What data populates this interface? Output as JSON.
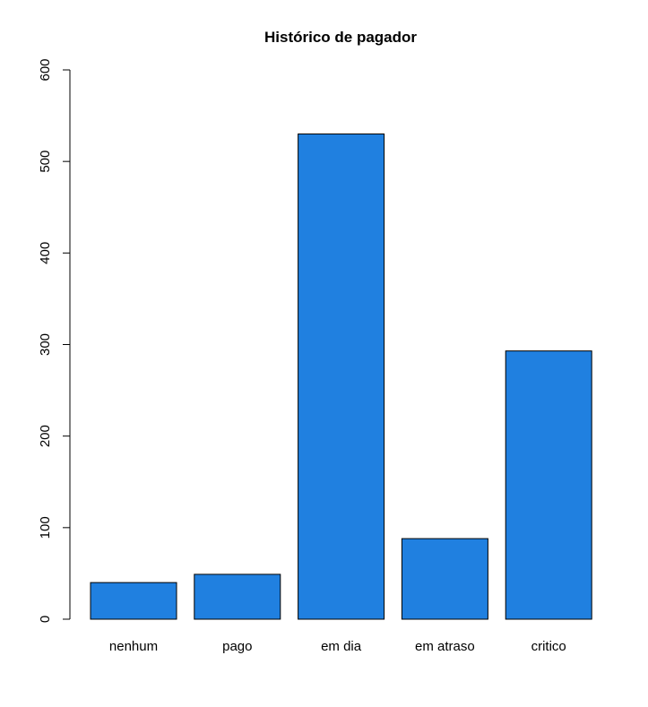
{
  "chart_data": {
    "type": "bar",
    "title": "Histórico de pagador",
    "xlabel": "",
    "ylabel": "",
    "categories": [
      "nenhum",
      "pago",
      "em dia",
      "em atraso",
      "critico"
    ],
    "values": [
      40,
      49,
      530,
      88,
      293
    ],
    "ylim": [
      0,
      600
    ],
    "yticks": [
      "0",
      "100",
      "200",
      "300",
      "400",
      "500",
      "600"
    ],
    "bar_color": "#2080e0",
    "grid": false,
    "legend": "none"
  }
}
